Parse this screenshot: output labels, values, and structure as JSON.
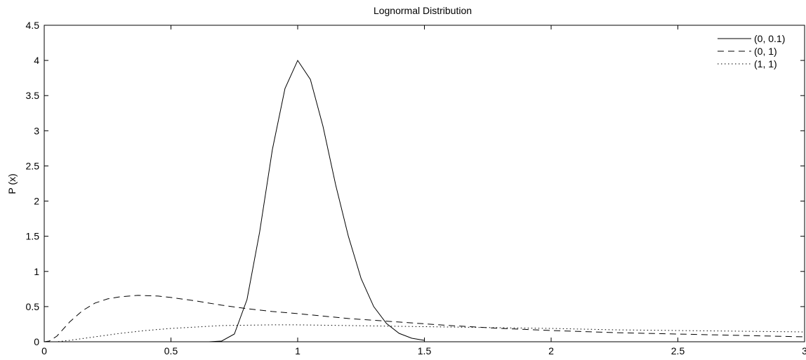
{
  "chart_data": {
    "type": "line",
    "title": "Lognormal Distribution",
    "xlabel": "",
    "ylabel": "P (x)",
    "xlim": [
      0,
      3
    ],
    "ylim": [
      0,
      4.5
    ],
    "xticks": [
      0,
      0.5,
      1,
      1.5,
      2,
      2.5,
      3
    ],
    "xtick_labels": [
      "0",
      "0.5",
      "1",
      "1.5",
      "2",
      "2.5",
      "3"
    ],
    "yticks": [
      0,
      0.5,
      1,
      1.5,
      2,
      2.5,
      3,
      3.5,
      4,
      4.5
    ],
    "ytick_labels": [
      "0",
      "0.5",
      "1",
      "1.5",
      "2",
      "2.5",
      "3",
      "3.5",
      "4",
      "4.5"
    ],
    "grid": false,
    "legend_position": "top-right",
    "series": [
      {
        "name": "(0, 0.1)",
        "line_style": "solid",
        "x": [
          0.65,
          0.7,
          0.75,
          0.8,
          0.85,
          0.9,
          0.95,
          1.0,
          1.05,
          1.1,
          1.15,
          1.2,
          1.25,
          1.3,
          1.35,
          1.4,
          1.45,
          1.5
        ],
        "y": [
          0.0,
          0.01,
          0.11,
          0.6,
          1.56,
          2.73,
          3.6,
          4.0,
          3.73,
          3.06,
          2.23,
          1.5,
          0.9,
          0.5,
          0.26,
          0.12,
          0.05,
          0.02
        ]
      },
      {
        "name": "(0, 1)",
        "line_style": "dashed",
        "x": [
          0.0,
          0.02,
          0.05,
          0.1,
          0.15,
          0.2,
          0.25,
          0.3,
          0.37,
          0.45,
          0.5,
          0.6,
          0.7,
          0.8,
          0.9,
          1.0,
          1.2,
          1.4,
          1.6,
          1.8,
          2.0,
          2.25,
          2.5,
          2.75,
          3.0
        ],
        "y": [
          0.0,
          0.01,
          0.08,
          0.28,
          0.44,
          0.55,
          0.61,
          0.64,
          0.66,
          0.65,
          0.63,
          0.58,
          0.52,
          0.47,
          0.43,
          0.4,
          0.33,
          0.28,
          0.23,
          0.19,
          0.16,
          0.13,
          0.11,
          0.09,
          0.07
        ]
      },
      {
        "name": "(1, 1)",
        "line_style": "dotted",
        "x": [
          0.0,
          0.05,
          0.1,
          0.2,
          0.3,
          0.4,
          0.5,
          0.6,
          0.7,
          0.8,
          0.9,
          1.0,
          1.2,
          1.4,
          1.6,
          1.8,
          2.0,
          2.25,
          2.5,
          2.75,
          3.0
        ],
        "y": [
          0.0,
          0.0,
          0.02,
          0.07,
          0.12,
          0.16,
          0.19,
          0.21,
          0.23,
          0.235,
          0.24,
          0.24,
          0.23,
          0.22,
          0.21,
          0.2,
          0.19,
          0.17,
          0.16,
          0.15,
          0.14
        ]
      }
    ]
  }
}
